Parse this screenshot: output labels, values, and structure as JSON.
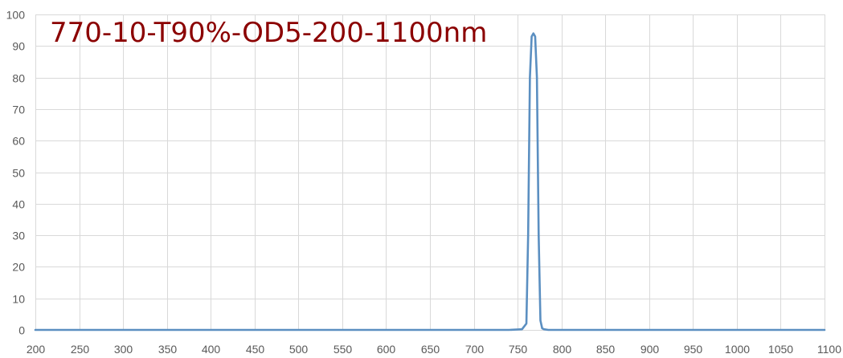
{
  "chart_data": {
    "type": "line",
    "title": "770-10-T90%-OD5-200-1100nm",
    "xlabel": "",
    "ylabel": "",
    "xlim": [
      200,
      1100
    ],
    "ylim": [
      0,
      100
    ],
    "x_ticks": [
      200,
      250,
      300,
      350,
      400,
      450,
      500,
      550,
      600,
      650,
      700,
      750,
      800,
      850,
      900,
      950,
      1000,
      1050,
      1100
    ],
    "y_ticks": [
      0,
      10,
      20,
      30,
      40,
      50,
      60,
      70,
      80,
      90,
      100
    ],
    "grid": true,
    "legend": "none",
    "series": [
      {
        "color": "#5b8fc1",
        "x": [
          200,
          740,
          755,
          760,
          762,
          764,
          766,
          768,
          770,
          772,
          774,
          776,
          778,
          780,
          785,
          800,
          1100
        ],
        "y": [
          0,
          0,
          0.2,
          2,
          30,
          80,
          93,
          94,
          93,
          80,
          30,
          3,
          0.5,
          0.2,
          0,
          0,
          0
        ]
      }
    ]
  }
}
